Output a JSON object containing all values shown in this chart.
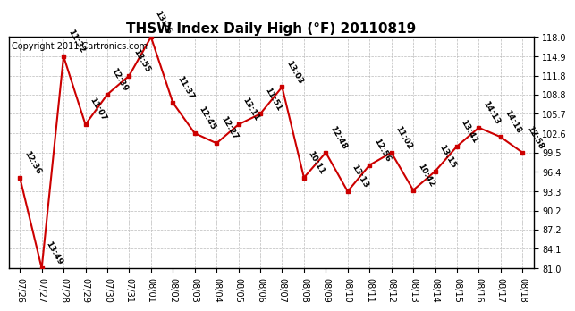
{
  "title": "THSW Index Daily High (°F) 20110819",
  "copyright": "Copyright 2011 Cartronics.com",
  "x_labels": [
    "07/26",
    "07/27",
    "07/28",
    "07/29",
    "07/30",
    "07/31",
    "08/01",
    "08/02",
    "08/03",
    "08/04",
    "08/05",
    "08/06",
    "08/07",
    "08/08",
    "08/09",
    "08/10",
    "08/11",
    "08/12",
    "08/13",
    "08/14",
    "08/15",
    "08/16",
    "08/17",
    "08/18"
  ],
  "y_values": [
    95.5,
    81.0,
    114.9,
    104.0,
    108.8,
    111.8,
    118.0,
    107.5,
    102.6,
    101.0,
    104.0,
    105.7,
    110.0,
    95.5,
    99.5,
    93.3,
    97.5,
    99.5,
    93.5,
    96.5,
    100.5,
    103.5,
    102.0,
    99.5
  ],
  "time_labels": [
    "12:36",
    "13:49",
    "11:32",
    "11:07",
    "12:39",
    "13:55",
    "13:26",
    "11:37",
    "12:45",
    "12:27",
    "13:11",
    "11:51",
    "13:03",
    "10:11",
    "12:48",
    "13:13",
    "12:56",
    "11:02",
    "10:42",
    "13:15",
    "13:41",
    "14:13",
    "14:18",
    "12:58"
  ],
  "y_ticks": [
    81.0,
    84.1,
    87.2,
    90.2,
    93.3,
    96.4,
    99.5,
    102.6,
    105.7,
    108.8,
    111.8,
    114.9,
    118.0
  ],
  "y_min": 81.0,
  "y_max": 118.0,
  "line_color": "#cc0000",
  "marker_color": "#cc0000",
  "bg_color": "#ffffff",
  "grid_color": "#bbbbbb",
  "title_fontsize": 11,
  "copyright_fontsize": 7,
  "label_fontsize": 6.5
}
